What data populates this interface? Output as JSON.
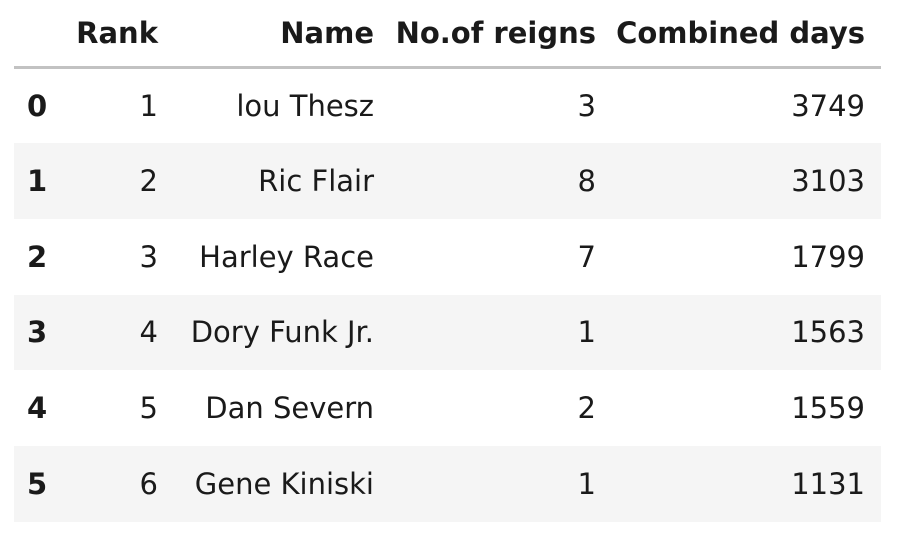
{
  "table": {
    "index_header": "",
    "columns": [
      "Rank",
      "Name",
      "No.of reigns",
      "Combined days"
    ],
    "rows": [
      {
        "index": "0",
        "cells": [
          "1",
          "lou Thesz",
          "3",
          "3749"
        ]
      },
      {
        "index": "1",
        "cells": [
          "2",
          "Ric Flair",
          "8",
          "3103"
        ]
      },
      {
        "index": "2",
        "cells": [
          "3",
          "Harley Race",
          "7",
          "1799"
        ]
      },
      {
        "index": "3",
        "cells": [
          "4",
          "Dory Funk Jr.",
          "1",
          "1563"
        ]
      },
      {
        "index": "4",
        "cells": [
          "5",
          "Dan Severn",
          "2",
          "1559"
        ]
      },
      {
        "index": "5",
        "cells": [
          "6",
          "Gene Kiniski",
          "1",
          "1131"
        ]
      }
    ]
  },
  "colors": {
    "header_rule": "#c2c2c2",
    "stripe": "#f5f5f5",
    "text": "#1a1a1a"
  }
}
